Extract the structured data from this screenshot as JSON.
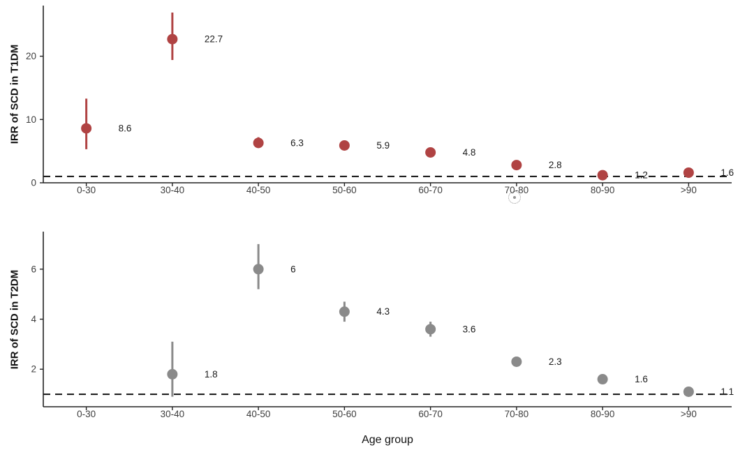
{
  "chart_data": [
    {
      "type": "scatter",
      "panel": "top",
      "title": "",
      "ylabel": "IRR of SCD in T1DM",
      "xlabel": "",
      "categories": [
        "0-30",
        "30-40",
        "40-50",
        "50-60",
        "60-70",
        "70-80",
        "80-90",
        ">90"
      ],
      "yticks": [
        0,
        10,
        20
      ],
      "ylim": [
        0,
        28
      ],
      "reference_line_y": 1,
      "grid": false,
      "legend": false,
      "series": [
        {
          "name": "IRR of SCD in T1DM",
          "color": "#b04343",
          "values": [
            8.6,
            22.7,
            6.3,
            5.9,
            4.8,
            2.8,
            1.2,
            1.6
          ],
          "ci_low": [
            5.3,
            19.4,
            5.5,
            5.4,
            4.3,
            2.4,
            0.9,
            1.1
          ],
          "ci_high": [
            13.3,
            26.9,
            7.2,
            6.4,
            5.3,
            3.2,
            1.5,
            2.1
          ],
          "point_labels": [
            "8.6",
            "22.7",
            "6.3",
            "5.9",
            "4.8",
            "2.8",
            "1.2",
            "1.6"
          ]
        }
      ]
    },
    {
      "type": "scatter",
      "panel": "bottom",
      "title": "",
      "ylabel": "IRR of SCD in T2DM",
      "xlabel": "Age group",
      "categories": [
        "0-30",
        "30-40",
        "40-50",
        "50-60",
        "60-70",
        "70-80",
        "80-90",
        ">90"
      ],
      "yticks": [
        2,
        4,
        6
      ],
      "ylim": [
        0.5,
        7.5
      ],
      "reference_line_y": 1,
      "grid": false,
      "legend": false,
      "series": [
        {
          "name": "IRR of SCD in T2DM",
          "color": "#8a8a8a",
          "values": [
            null,
            1.8,
            6,
            4.3,
            3.6,
            2.3,
            1.6,
            1.1
          ],
          "ci_low": [
            null,
            0.9,
            5.2,
            3.9,
            3.3,
            2.15,
            1.45,
            1.0
          ],
          "ci_high": [
            null,
            3.1,
            7.0,
            4.7,
            3.9,
            2.5,
            1.75,
            1.2
          ],
          "point_labels": [
            "",
            "1.8",
            "6",
            "4.3",
            "3.6",
            "2.3",
            "1.6",
            "1.1"
          ]
        }
      ]
    }
  ]
}
